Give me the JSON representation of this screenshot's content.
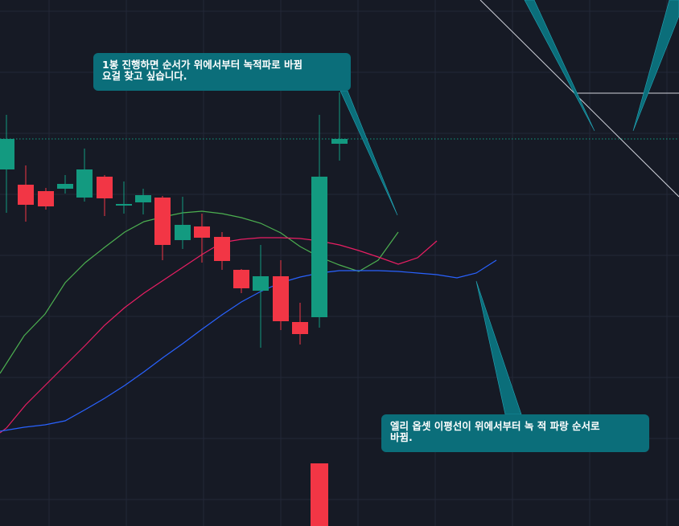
{
  "chart_data": {
    "type": "candlestick",
    "axes_labels_visible": false,
    "grid": true,
    "ylim": [
      0,
      655
    ],
    "colors": {
      "background": "#161a25",
      "grid": "#232838",
      "up": "#139a80",
      "down": "#f23645",
      "ma_green": "#4caf50",
      "ma_red": "#e91e63",
      "ma_blue": "#2962ff",
      "price_line": "#139a80",
      "drawing_line": "#d1d4dc",
      "callout": "#0b6e7a"
    },
    "candles": [
      {
        "x": 8,
        "open": 444,
        "close": 482,
        "high": 512,
        "low": 390
      },
      {
        "x": 32,
        "open": 425,
        "close": 400,
        "high": 449,
        "low": 379
      },
      {
        "x": 57,
        "open": 417,
        "close": 398,
        "high": 421,
        "low": 394
      },
      {
        "x": 81,
        "open": 420,
        "close": 426,
        "high": 437,
        "low": 414
      },
      {
        "x": 105,
        "open": 409,
        "close": 444,
        "high": 470,
        "low": 404
      },
      {
        "x": 130,
        "open": 435,
        "close": 408,
        "high": 437,
        "low": 386
      },
      {
        "x": 154,
        "open": 399,
        "close": 401,
        "high": 429,
        "low": 389
      },
      {
        "x": 178,
        "open": 403,
        "close": 412,
        "high": 420,
        "low": 388
      },
      {
        "x": 202,
        "open": 409,
        "close": 350,
        "high": 411,
        "low": 331
      },
      {
        "x": 227,
        "open": 356,
        "close": 375,
        "high": 410,
        "low": 345
      },
      {
        "x": 251,
        "open": 373,
        "close": 359,
        "high": 389,
        "low": 328
      },
      {
        "x": 276,
        "open": 360,
        "close": 330,
        "high": 366,
        "low": 319
      },
      {
        "x": 300,
        "open": 319,
        "close": 296,
        "high": 320,
        "low": 290
      },
      {
        "x": 324,
        "open": 293,
        "close": 311,
        "high": 350,
        "low": 222
      },
      {
        "x": 349,
        "open": 311,
        "close": 255,
        "high": 331,
        "low": 244
      },
      {
        "x": 373,
        "open": 254,
        "close": 239,
        "high": 278,
        "low": 226
      },
      {
        "x": 397,
        "open": 260,
        "close": 435,
        "high": 512,
        "low": 247
      },
      {
        "x": 422,
        "open": 476,
        "close": 482,
        "high": 540,
        "low": 455
      }
    ],
    "volume_bar": {
      "x": 397,
      "top_value": 78,
      "color": "down"
    },
    "price_line_value": 482,
    "series": [
      {
        "color_key": "ma_green",
        "points": [
          [
            0,
            190
          ],
          [
            30,
            237
          ],
          [
            56,
            264
          ],
          [
            81,
            303
          ],
          [
            106,
            328
          ],
          [
            130,
            347
          ],
          [
            155,
            366
          ],
          [
            179,
            379
          ],
          [
            203,
            385
          ],
          [
            227,
            390
          ],
          [
            251,
            392
          ],
          [
            276,
            389
          ],
          [
            300,
            384
          ],
          [
            324,
            377
          ],
          [
            349,
            365
          ],
          [
            373,
            348
          ],
          [
            397,
            335
          ],
          [
            422,
            325
          ],
          [
            446,
            317
          ],
          [
            470,
            331
          ],
          [
            495,
            366
          ]
        ]
      },
      {
        "color_key": "ma_red",
        "points": [
          [
            0,
            116
          ],
          [
            8,
            122
          ],
          [
            32,
            151
          ],
          [
            57,
            176
          ],
          [
            81,
            200
          ],
          [
            106,
            225
          ],
          [
            130,
            250
          ],
          [
            155,
            272
          ],
          [
            179,
            290
          ],
          [
            203,
            306
          ],
          [
            227,
            322
          ],
          [
            251,
            338
          ],
          [
            276,
            353
          ],
          [
            300,
            357
          ],
          [
            324,
            359
          ],
          [
            349,
            359
          ],
          [
            373,
            358
          ],
          [
            397,
            355
          ],
          [
            422,
            350
          ],
          [
            446,
            343
          ],
          [
            470,
            335
          ],
          [
            495,
            326
          ],
          [
            519,
            334
          ],
          [
            543,
            355
          ]
        ]
      },
      {
        "color_key": "ma_blue",
        "points": [
          [
            0,
            118
          ],
          [
            30,
            123
          ],
          [
            56,
            126
          ],
          [
            81,
            131
          ],
          [
            106,
            145
          ],
          [
            130,
            159
          ],
          [
            155,
            175
          ],
          [
            179,
            192
          ],
          [
            203,
            210
          ],
          [
            227,
            227
          ],
          [
            251,
            245
          ],
          [
            276,
            263
          ],
          [
            300,
            279
          ],
          [
            324,
            292
          ],
          [
            349,
            303
          ],
          [
            373,
            310
          ],
          [
            397,
            315
          ],
          [
            422,
            318
          ],
          [
            446,
            318
          ],
          [
            470,
            318
          ],
          [
            495,
            317
          ],
          [
            519,
            315
          ],
          [
            543,
            313
          ],
          [
            568,
            309
          ],
          [
            592,
            315
          ],
          [
            617,
            331
          ]
        ]
      }
    ],
    "annotations": [
      {
        "lines": [
          "1봉 진행하면 순서가 위에서부터  녹적파로 바뀜",
          "요걸 찾고 싶습니다."
        ],
        "tail_tip_value": 387,
        "tail_tip_x": 494
      },
      {
        "lines": [
          "엘리 옵셋  이평선이 위에서부터 녹 적 파랑 순서로",
          "바뀜."
        ],
        "tail_tip_value": 305,
        "tail_tip_x": 592
      }
    ]
  }
}
